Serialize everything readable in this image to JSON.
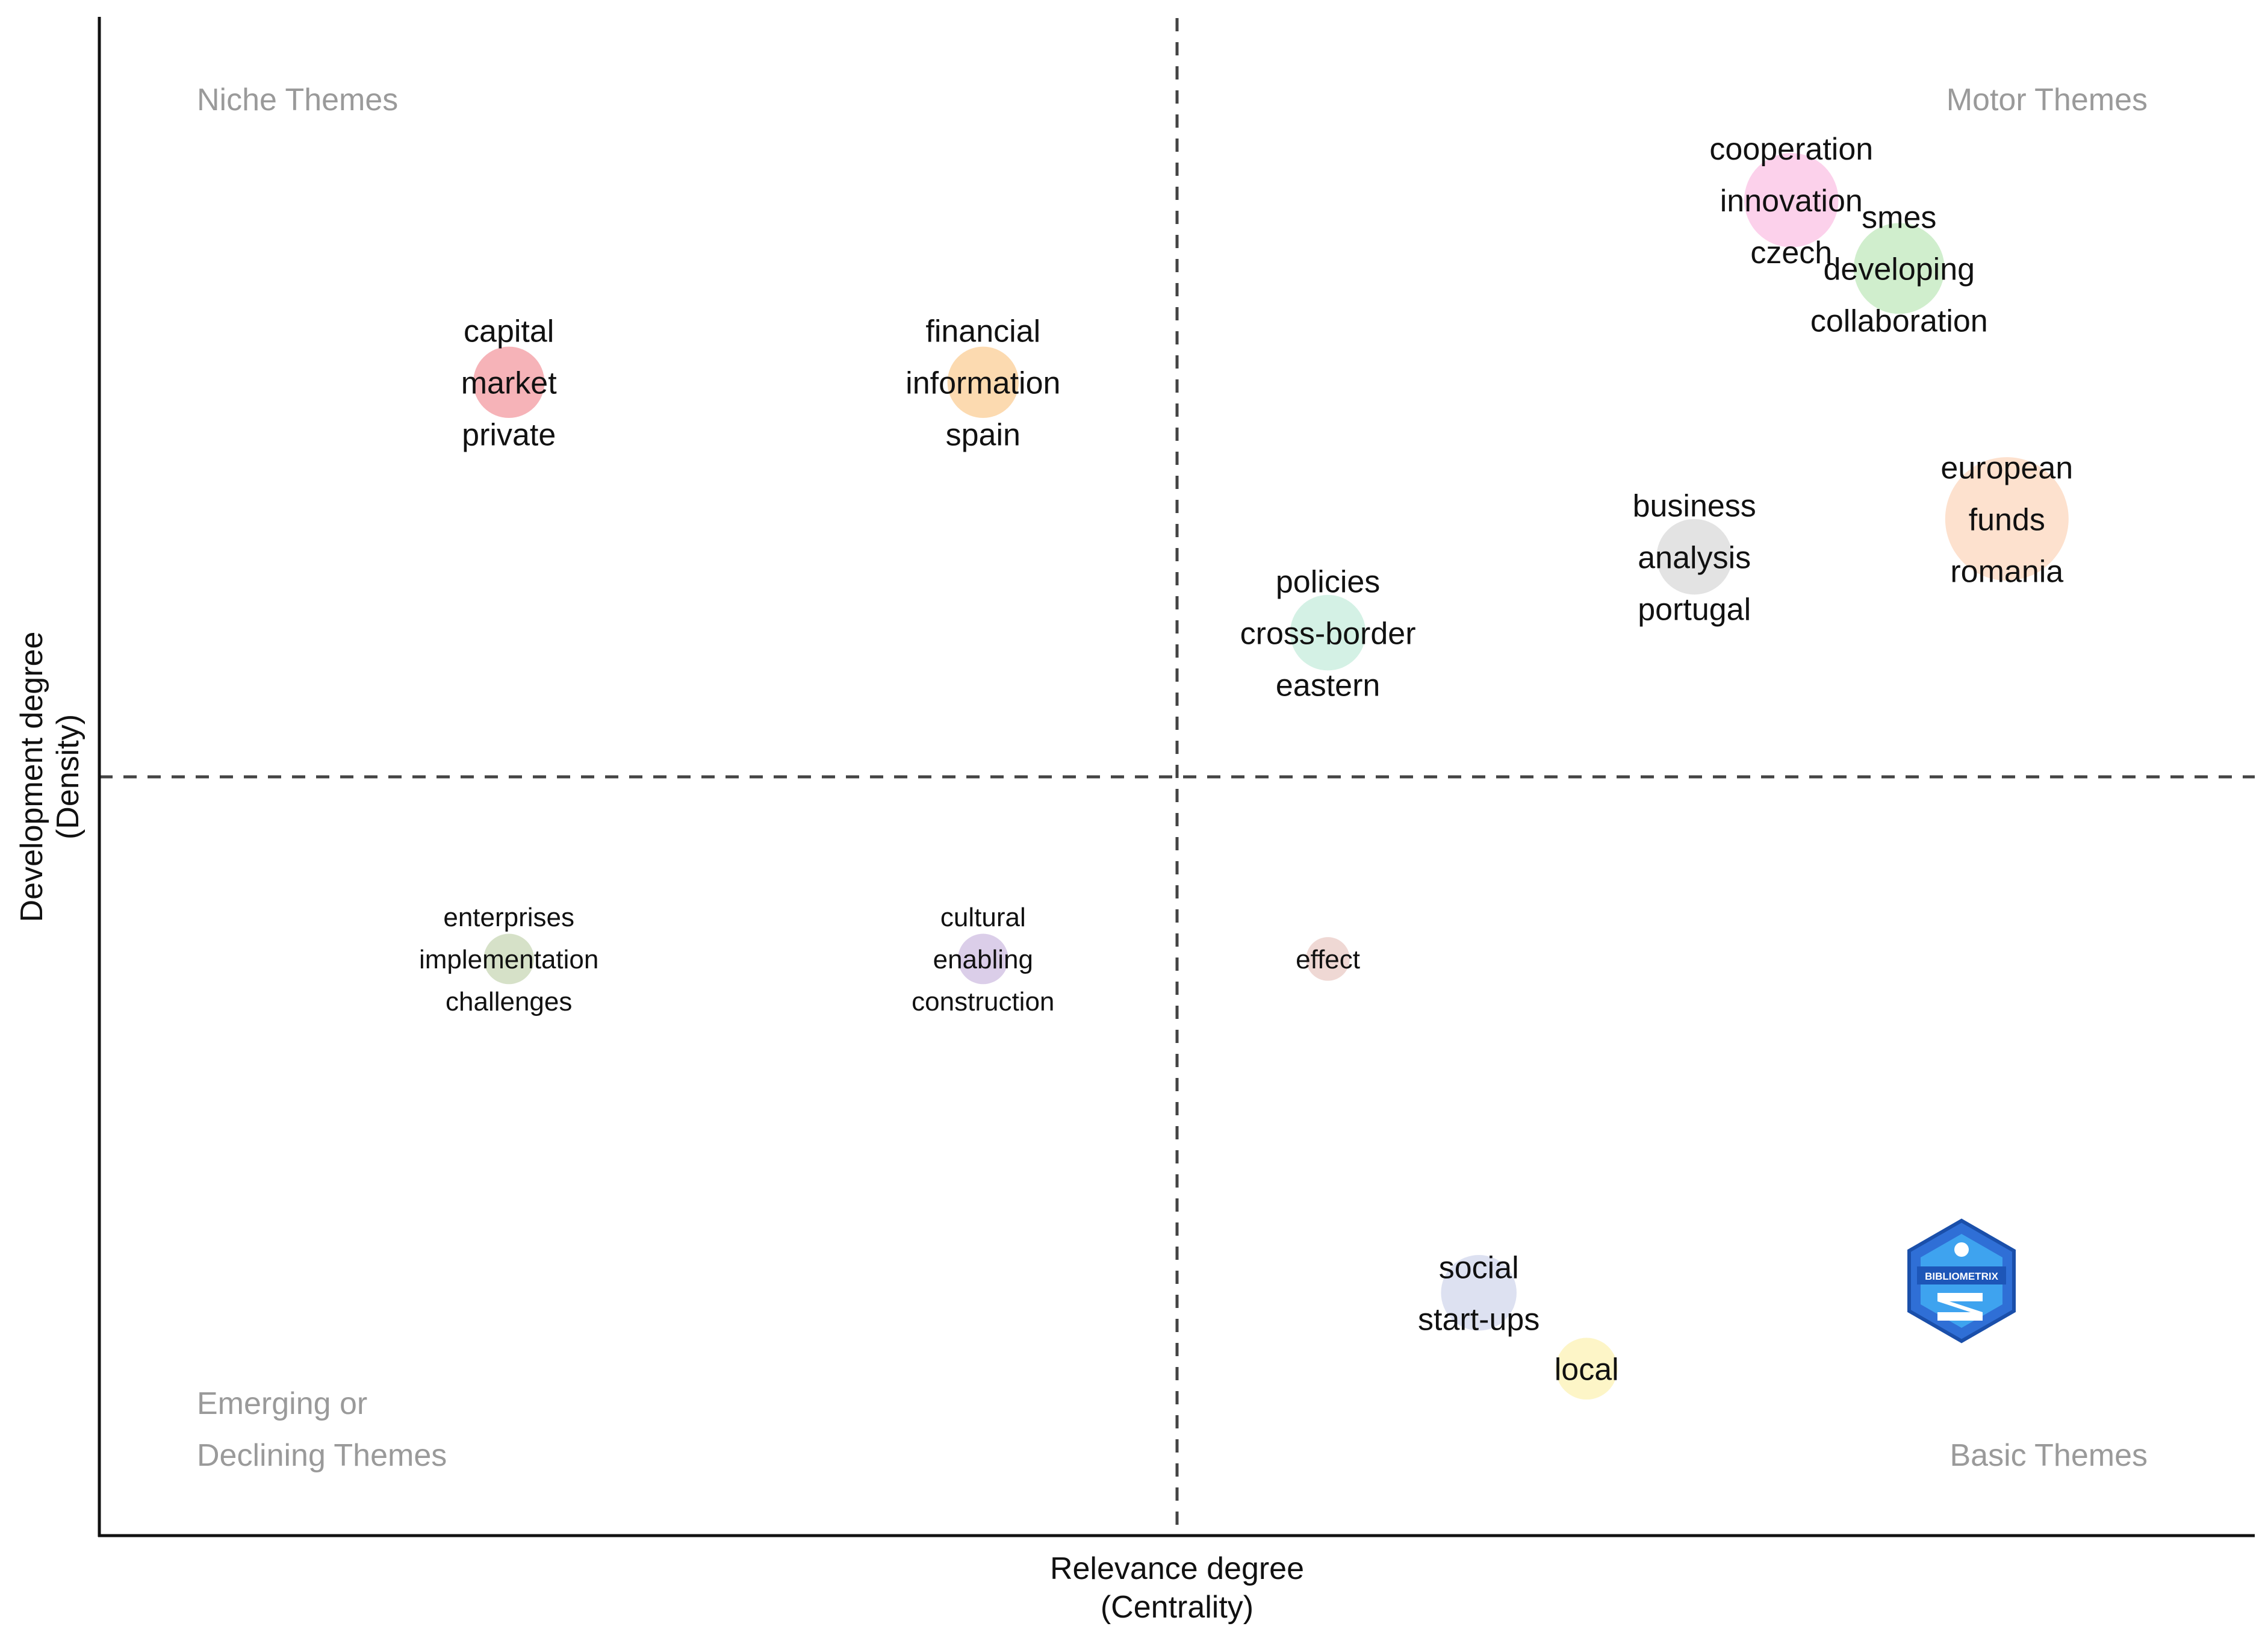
{
  "chart_data": {
    "type": "scatter",
    "xlabel": [
      "Relevance degree",
      "(Centrality)"
    ],
    "ylabel": [
      "Development degree",
      "(Density)"
    ],
    "quadrants": {
      "top_left": [
        "Niche Themes"
      ],
      "top_right": [
        "Motor Themes"
      ],
      "bottom_left": [
        "Emerging or",
        "Declining Themes"
      ],
      "bottom_right": [
        "Basic Themes"
      ]
    },
    "grid": false,
    "logo": "BIBLIOMETRIX",
    "clusters": [
      {
        "x": 0.19,
        "y": 0.76,
        "size": 0.8,
        "color": "#f4a6ab",
        "labels": [
          "capital",
          "market",
          "private"
        ]
      },
      {
        "x": 0.41,
        "y": 0.76,
        "size": 0.8,
        "color": "#fcd3a2",
        "labels": [
          "financial",
          "information",
          "spain"
        ]
      },
      {
        "x": 0.785,
        "y": 0.88,
        "size": 1.4,
        "color": "#fbc9e8",
        "labels": [
          "cooperation",
          "innovation",
          "czech"
        ]
      },
      {
        "x": 0.835,
        "y": 0.835,
        "size": 1.3,
        "color": "#c8ebc4",
        "labels": [
          "smes",
          "developing",
          "collaboration"
        ]
      },
      {
        "x": 0.885,
        "y": 0.67,
        "size": 2.4,
        "color": "#fddcc6",
        "labels": [
          "european",
          "funds",
          "romania"
        ]
      },
      {
        "x": 0.74,
        "y": 0.645,
        "size": 0.9,
        "color": "#dedede",
        "labels": [
          "business",
          "analysis",
          "portugal"
        ]
      },
      {
        "x": 0.57,
        "y": 0.595,
        "size": 0.9,
        "color": "#cdeee0",
        "labels": [
          "policies",
          "cross-border",
          "eastern"
        ]
      },
      {
        "x": 0.19,
        "y": 0.38,
        "size": 0.4,
        "color": "#cfdcbe",
        "labels": [
          "enterprises",
          "implementation",
          "challenges"
        ]
      },
      {
        "x": 0.41,
        "y": 0.38,
        "size": 0.4,
        "color": "#d5c6e5",
        "labels": [
          "cultural",
          "enabling",
          "construction"
        ]
      },
      {
        "x": 0.57,
        "y": 0.38,
        "size": 0.3,
        "color": "#ecd1cc",
        "labels": [
          "effect"
        ]
      },
      {
        "x": 0.64,
        "y": 0.16,
        "size": 0.9,
        "color": "#d7dcef",
        "labels": [
          "social",
          "start-ups"
        ]
      },
      {
        "x": 0.69,
        "y": 0.11,
        "size": 0.6,
        "color": "#fdf3bd",
        "labels": [
          "local"
        ]
      }
    ]
  }
}
